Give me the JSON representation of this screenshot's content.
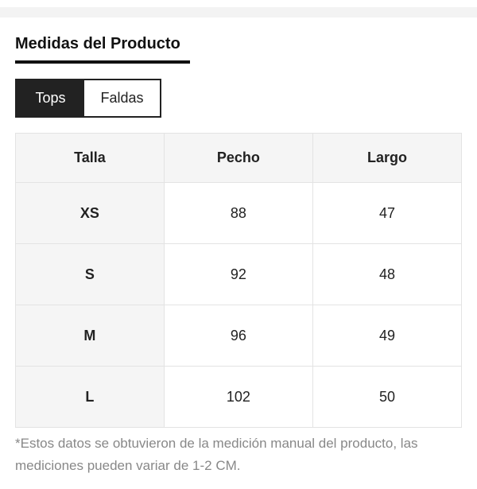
{
  "title": "Medidas del Producto",
  "tabs": [
    {
      "label": "Tops",
      "active": true
    },
    {
      "label": "Faldas",
      "active": false
    }
  ],
  "table": {
    "headers": [
      "Talla",
      "Pecho",
      "Largo"
    ],
    "rows": [
      [
        "XS",
        "88",
        "47"
      ],
      [
        "S",
        "92",
        "48"
      ],
      [
        "M",
        "96",
        "49"
      ],
      [
        "L",
        "102",
        "50"
      ]
    ]
  },
  "note": "*Estos datos se obtuvieron de la medición manual del producto, las mediciones pueden variar de 1-2 CM."
}
